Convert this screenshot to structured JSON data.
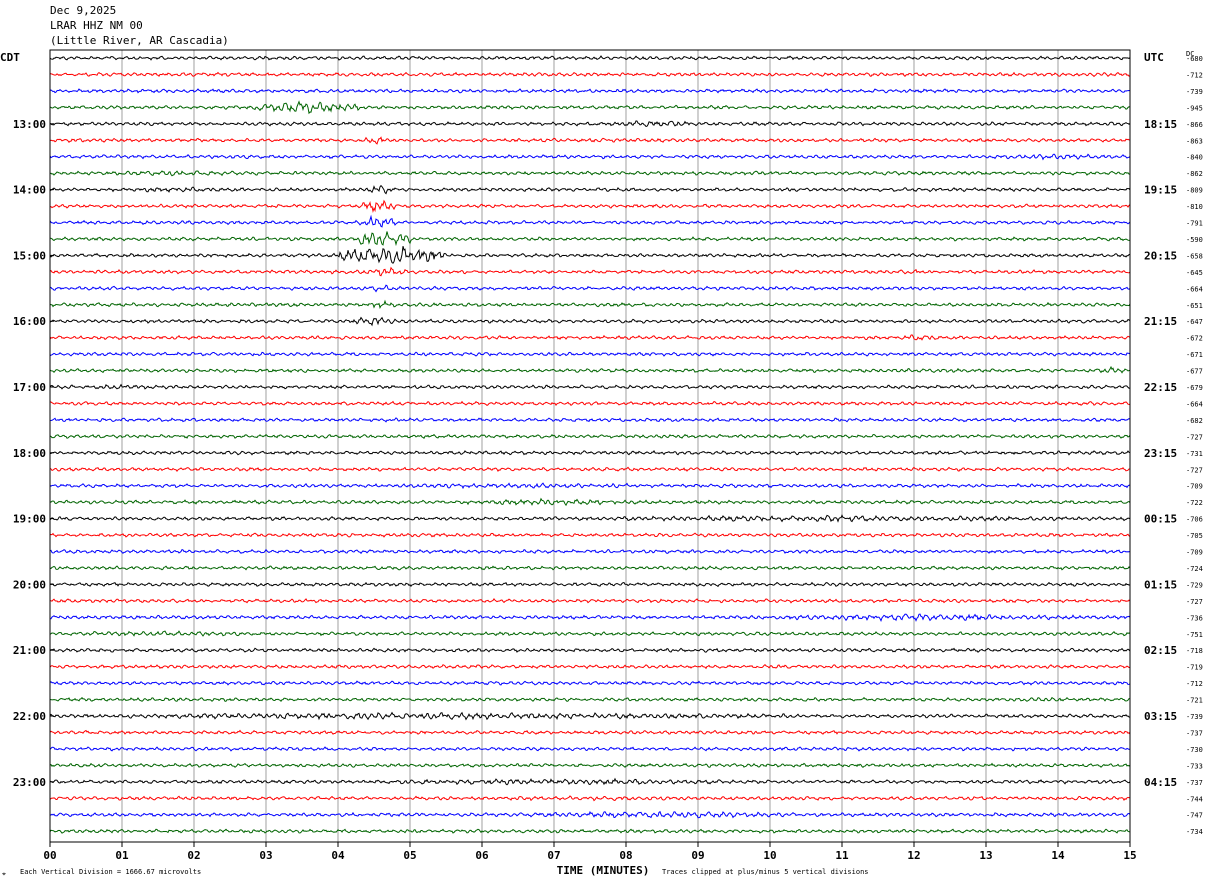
{
  "header": {
    "date": "Dec 9,2025",
    "station": "LRAR HHZ NM 00",
    "location": "(Little River, AR Cascadia)"
  },
  "chart_data": {
    "type": "line",
    "title": "LRAR HHZ NM 00",
    "left_axis_label": "CDT",
    "right_axis_label": "UTC",
    "dc_label": "DC",
    "xlabel": "TIME (MINUTES)",
    "xlim": [
      0,
      15
    ],
    "x_ticks": [
      "00",
      "01",
      "02",
      "03",
      "04",
      "05",
      "06",
      "07",
      "08",
      "09",
      "10",
      "11",
      "12",
      "13",
      "14",
      "15"
    ],
    "left_hour_labels": [
      "13:00",
      "14:00",
      "15:00",
      "16:00",
      "17:00",
      "18:00",
      "19:00",
      "20:00",
      "21:00",
      "22:00",
      "23:00"
    ],
    "right_hour_labels": [
      "18:15",
      "19:15",
      "20:15",
      "21:15",
      "22:15",
      "23:15",
      "00:15",
      "01:15",
      "02:15",
      "03:15",
      "04:15"
    ],
    "first_labeled_row": 4,
    "rows_per_hour": 4,
    "trace_colors": [
      "#000000",
      "#ff0000",
      "#0000ff",
      "#006400"
    ],
    "dc_offsets": [
      -680,
      -712,
      -739,
      -945,
      -866,
      -863,
      -840,
      -862,
      -809,
      -810,
      -791,
      -590,
      -658,
      -645,
      -664,
      -651,
      -647,
      -672,
      -671,
      -677,
      -679,
      -664,
      -682,
      -727,
      -731,
      -727,
      -709,
      -722,
      -706,
      -705,
      -709,
      -724,
      -729,
      -727,
      -736,
      -751,
      -718,
      -719,
      -712,
      -721,
      -739,
      -737,
      -730,
      -733,
      -737,
      -744,
      -747,
      -734
    ],
    "events": [
      {
        "row": 3,
        "start_min": 2.8,
        "end_min": 4.3,
        "amp": 3.5
      },
      {
        "row": 4,
        "start_min": 7.8,
        "end_min": 9.0,
        "amp": 2.2
      },
      {
        "row": 5,
        "start_min": 4.3,
        "end_min": 4.8,
        "amp": 2.5
      },
      {
        "row": 6,
        "start_min": 12.8,
        "end_min": 15.0,
        "amp": 1.6
      },
      {
        "row": 7,
        "start_min": 0.0,
        "end_min": 3.5,
        "amp": 1.5
      },
      {
        "row": 8,
        "start_min": 0.0,
        "end_min": 3.5,
        "amp": 1.4
      },
      {
        "row": 8,
        "start_min": 4.4,
        "end_min": 4.8,
        "amp": 3.0
      },
      {
        "row": 9,
        "start_min": 4.3,
        "end_min": 4.8,
        "amp": 4.0
      },
      {
        "row": 10,
        "start_min": 4.3,
        "end_min": 4.8,
        "amp": 4.0
      },
      {
        "row": 11,
        "start_min": 4.2,
        "end_min": 5.0,
        "amp": 5.0
      },
      {
        "row": 12,
        "start_min": 4.0,
        "end_min": 5.5,
        "amp": 6.0
      },
      {
        "row": 13,
        "start_min": 4.3,
        "end_min": 5.0,
        "amp": 2.5
      },
      {
        "row": 13,
        "start_min": 11.8,
        "end_min": 12.2,
        "amp": 1.6
      },
      {
        "row": 14,
        "start_min": 4.4,
        "end_min": 4.8,
        "amp": 2.5
      },
      {
        "row": 15,
        "start_min": 4.4,
        "end_min": 4.8,
        "amp": 2.5
      },
      {
        "row": 16,
        "start_min": 4.2,
        "end_min": 4.8,
        "amp": 3.0
      },
      {
        "row": 17,
        "start_min": 11.8,
        "end_min": 12.4,
        "amp": 2.0
      },
      {
        "row": 19,
        "start_min": 14.5,
        "end_min": 15.0,
        "amp": 2.0
      },
      {
        "row": 20,
        "start_min": 0.0,
        "end_min": 2.0,
        "amp": 1.5
      },
      {
        "row": 26,
        "start_min": 4.0,
        "end_min": 9.0,
        "amp": 1.6
      },
      {
        "row": 27,
        "start_min": 5.3,
        "end_min": 8.5,
        "amp": 1.8
      },
      {
        "row": 28,
        "start_min": 6.2,
        "end_min": 15.0,
        "amp": 1.8
      },
      {
        "row": 34,
        "start_min": 9.5,
        "end_min": 15.0,
        "amp": 2.0
      },
      {
        "row": 35,
        "start_min": 0.0,
        "end_min": 3.0,
        "amp": 1.6
      },
      {
        "row": 39,
        "start_min": 12.5,
        "end_min": 15.0,
        "amp": 1.4
      },
      {
        "row": 40,
        "start_min": 0.0,
        "end_min": 11.0,
        "amp": 2.0
      },
      {
        "row": 44,
        "start_min": 4.0,
        "end_min": 10.0,
        "amp": 1.8
      },
      {
        "row": 45,
        "start_min": 5.0,
        "end_min": 9.5,
        "amp": 1.4
      },
      {
        "row": 46,
        "start_min": 6.5,
        "end_min": 10.5,
        "amp": 2.0
      }
    ]
  },
  "footer": {
    "vertical_division": "Each Vertical Division = 1666.67 microvolts",
    "clip_note": "Traces clipped at plus/minus 5 vertical divisions",
    "corner_mark": "⌖"
  }
}
